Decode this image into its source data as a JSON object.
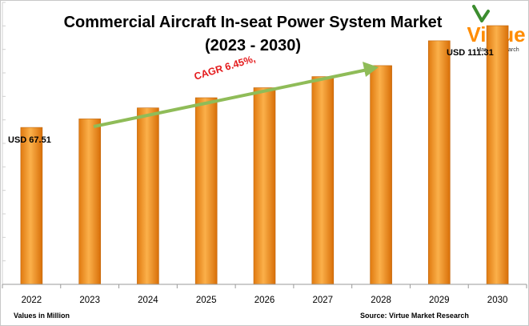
{
  "title_line1": "Commercial Aircraft In-seat Power System Market",
  "title_line2": "(2023 - 2030)",
  "logo": {
    "name": "Virtue",
    "tagline": "Market Research",
    "colors": {
      "primary": "#ff8c00",
      "accent": "#3c8d2f"
    }
  },
  "chart_data": {
    "type": "bar",
    "categories": [
      "2022",
      "2023",
      "2024",
      "2025",
      "2026",
      "2027",
      "2028",
      "2029",
      "2030"
    ],
    "values": [
      67.51,
      71.2,
      75.9,
      80.3,
      84.6,
      89.4,
      94.1,
      104.8,
      111.31
    ],
    "ylim": [
      0,
      121.3
    ],
    "grid": false,
    "annotations": {
      "first_label": "USD 67.51",
      "last_label": "USD 111.31",
      "cagr": "CAGR 6.45%,"
    },
    "bar_color": "#f7931e",
    "arrow_color": "#8fbc58"
  },
  "footnote_left": "Values in Million",
  "footnote_right": "Source: Virtue Market Research"
}
